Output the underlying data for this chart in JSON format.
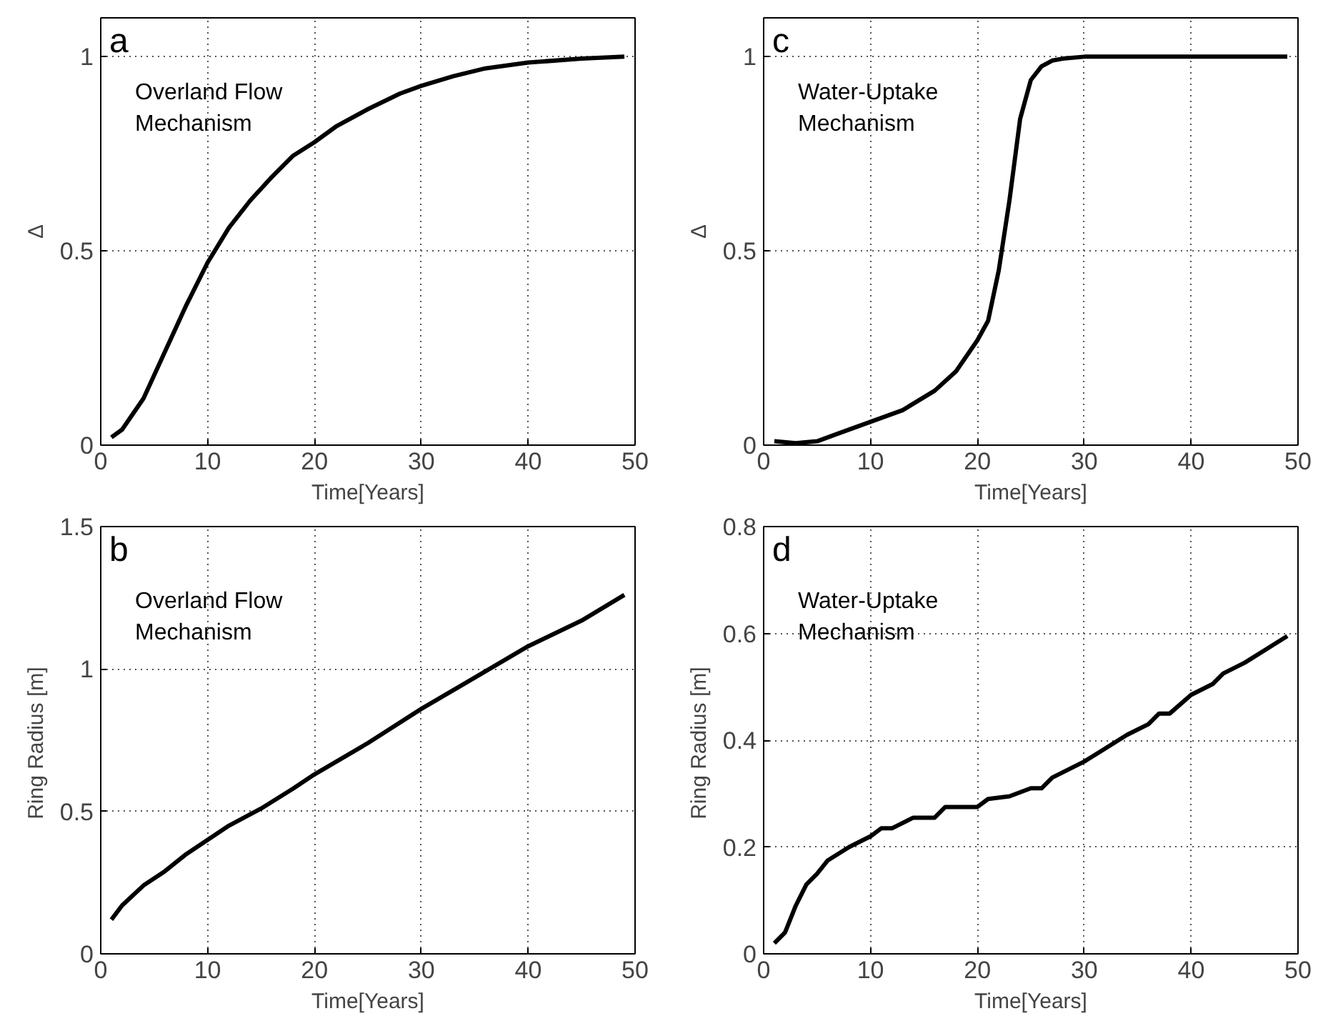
{
  "chart_data": [
    {
      "type": "line",
      "xlabel": "Time[Years]",
      "ylabel": "Δ",
      "annotations": [
        "a",
        "Overland Flow\nMechanism"
      ],
      "xlim": [
        0,
        50
      ],
      "xticks": [
        0,
        10,
        20,
        30,
        40,
        50
      ],
      "ylim": [
        0,
        1.1
      ],
      "yticks": [
        0,
        0.5,
        1
      ],
      "grid": true,
      "line_style": "solid",
      "x": [
        1,
        2,
        4,
        6,
        8,
        10,
        12,
        14,
        16,
        18,
        20,
        22,
        25,
        28,
        30,
        33,
        36,
        40,
        45,
        49
      ],
      "series": [
        {
          "color": "#000000",
          "values": [
            0.02,
            0.04,
            0.12,
            0.24,
            0.36,
            0.47,
            0.56,
            0.63,
            0.69,
            0.745,
            0.78,
            0.82,
            0.865,
            0.905,
            0.925,
            0.95,
            0.97,
            0.985,
            0.995,
            1.0
          ]
        }
      ]
    },
    {
      "type": "line",
      "xlabel": "Time[Years]",
      "ylabel": "Δ",
      "annotations": [
        "c",
        "Water-Uptake\nMechanism"
      ],
      "xlim": [
        0,
        50
      ],
      "xticks": [
        0,
        10,
        20,
        30,
        40,
        50
      ],
      "ylim": [
        0,
        1.1
      ],
      "yticks": [
        0,
        0.5,
        1
      ],
      "grid": true,
      "line_style": "solid",
      "x": [
        1,
        3,
        5,
        7,
        10,
        13,
        16,
        18,
        20,
        21,
        22,
        23,
        24,
        25,
        26,
        27,
        28,
        30,
        49
      ],
      "series": [
        {
          "color": "#000000",
          "values": [
            0.01,
            0.005,
            0.01,
            0.03,
            0.06,
            0.09,
            0.14,
            0.19,
            0.27,
            0.32,
            0.45,
            0.63,
            0.84,
            0.94,
            0.975,
            0.99,
            0.995,
            1.0,
            1.0
          ]
        }
      ]
    },
    {
      "type": "line",
      "xlabel": "Time[Years]",
      "ylabel": "Ring  Radius [m]",
      "annotations": [
        "b",
        "Overland Flow\nMechanism"
      ],
      "xlim": [
        0,
        50
      ],
      "xticks": [
        0,
        10,
        20,
        30,
        40,
        50
      ],
      "ylim": [
        0,
        1.5
      ],
      "yticks": [
        0,
        0.5,
        1,
        1.5
      ],
      "grid": true,
      "line_style": "solid",
      "x": [
        1,
        2,
        4,
        6,
        8,
        10,
        12,
        15,
        18,
        20,
        25,
        30,
        35,
        40,
        45,
        49
      ],
      "series": [
        {
          "color": "#000000",
          "values": [
            0.12,
            0.17,
            0.24,
            0.29,
            0.35,
            0.4,
            0.45,
            0.51,
            0.58,
            0.63,
            0.74,
            0.86,
            0.97,
            1.08,
            1.17,
            1.26
          ]
        }
      ]
    },
    {
      "type": "line",
      "xlabel": "Time[Years]",
      "ylabel": "Ring  Radius [m]",
      "annotations": [
        "d",
        "Water-Uptake\nMechanism"
      ],
      "xlim": [
        0,
        50
      ],
      "xticks": [
        0,
        10,
        20,
        30,
        40,
        50
      ],
      "ylim": [
        0,
        0.8
      ],
      "yticks": [
        0,
        0.2,
        0.4,
        0.6,
        0.8
      ],
      "grid": true,
      "line_style": "solid",
      "x": [
        1,
        2,
        3,
        4,
        5,
        6,
        8,
        10,
        11,
        12,
        14,
        16,
        17,
        20,
        21,
        23,
        25,
        26,
        27,
        30,
        32,
        34,
        36,
        37,
        38,
        40,
        42,
        43,
        45,
        47,
        49
      ],
      "series": [
        {
          "color": "#000000",
          "values": [
            0.02,
            0.04,
            0.09,
            0.13,
            0.15,
            0.175,
            0.2,
            0.22,
            0.235,
            0.235,
            0.255,
            0.255,
            0.275,
            0.275,
            0.29,
            0.295,
            0.31,
            0.31,
            0.33,
            0.36,
            0.385,
            0.41,
            0.43,
            0.45,
            0.45,
            0.485,
            0.505,
            0.525,
            0.545,
            0.57,
            0.595
          ]
        }
      ]
    }
  ]
}
